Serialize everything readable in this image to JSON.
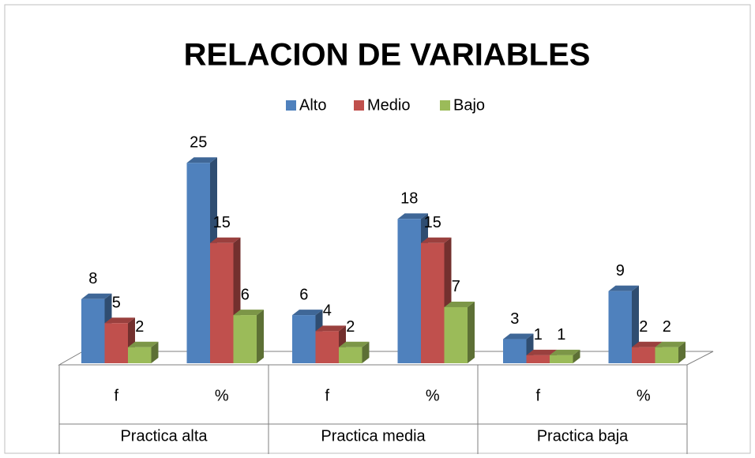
{
  "chart_data": {
    "type": "bar3d",
    "title": "RELACION DE VARIABLES",
    "categories": [
      "f",
      "%",
      "f",
      "%",
      "f",
      "%"
    ],
    "groups": [
      "Practica alta",
      "Practica media",
      "Practica baja"
    ],
    "series": [
      {
        "name": "Alto",
        "color": "#4f81bd",
        "values": [
          8,
          25,
          6,
          18,
          3,
          9
        ]
      },
      {
        "name": "Medio",
        "color": "#c0504d",
        "values": [
          5,
          15,
          4,
          15,
          1,
          2
        ]
      },
      {
        "name": "Bajo",
        "color": "#9bbb59",
        "values": [
          2,
          6,
          2,
          7,
          1,
          2
        ]
      }
    ],
    "legend": "top"
  }
}
